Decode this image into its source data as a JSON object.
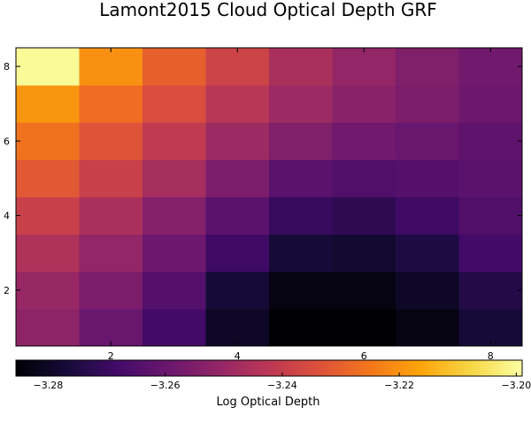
{
  "chart_data": {
    "type": "heatmap",
    "title": "Lamont2015 Cloud Optical Depth GRF",
    "xlabel": "",
    "ylabel": "",
    "x": [
      1,
      2,
      3,
      4,
      5,
      6,
      7,
      8
    ],
    "y": [
      1,
      2,
      3,
      4,
      5,
      6,
      7,
      8
    ],
    "xlim": [
      0.5,
      8.5
    ],
    "ylim": [
      0.5,
      8.5
    ],
    "x_ticks": [
      2,
      4,
      6,
      8
    ],
    "y_ticks": [
      2,
      4,
      6,
      8
    ],
    "z_rows_bottom_to_top": [
      [
        -3.252,
        -3.26,
        -3.268,
        -3.28,
        -3.286,
        -3.286,
        -3.283,
        -3.277
      ],
      [
        -3.25,
        -3.256,
        -3.264,
        -3.277,
        -3.283,
        -3.283,
        -3.28,
        -3.274
      ],
      [
        -3.245,
        -3.251,
        -3.259,
        -3.269,
        -3.277,
        -3.278,
        -3.275,
        -3.268
      ],
      [
        -3.239,
        -3.246,
        -3.254,
        -3.263,
        -3.27,
        -3.272,
        -3.269,
        -3.265
      ],
      [
        -3.232,
        -3.239,
        -3.247,
        -3.256,
        -3.263,
        -3.265,
        -3.264,
        -3.263
      ],
      [
        -3.226,
        -3.233,
        -3.241,
        -3.249,
        -3.255,
        -3.258,
        -3.26,
        -3.262
      ],
      [
        -3.219,
        -3.227,
        -3.235,
        -3.243,
        -3.249,
        -3.253,
        -3.256,
        -3.259
      ],
      [
        -3.2,
        -3.22,
        -3.23,
        -3.238,
        -3.246,
        -3.251,
        -3.255,
        -3.258
      ]
    ],
    "colorbar": {
      "label": "Log Optical Depth",
      "range": [
        -3.2855,
        -3.199
      ],
      "ticks": [
        -3.28,
        -3.26,
        -3.24,
        -3.22,
        -3.2
      ],
      "tick_labels": [
        "−3.28",
        "−3.26",
        "−3.24",
        "−3.22",
        "−3.20"
      ],
      "orientation": "horizontal",
      "placement": "bottom",
      "colormap": "inferno"
    },
    "grid": false,
    "legend": "none"
  }
}
